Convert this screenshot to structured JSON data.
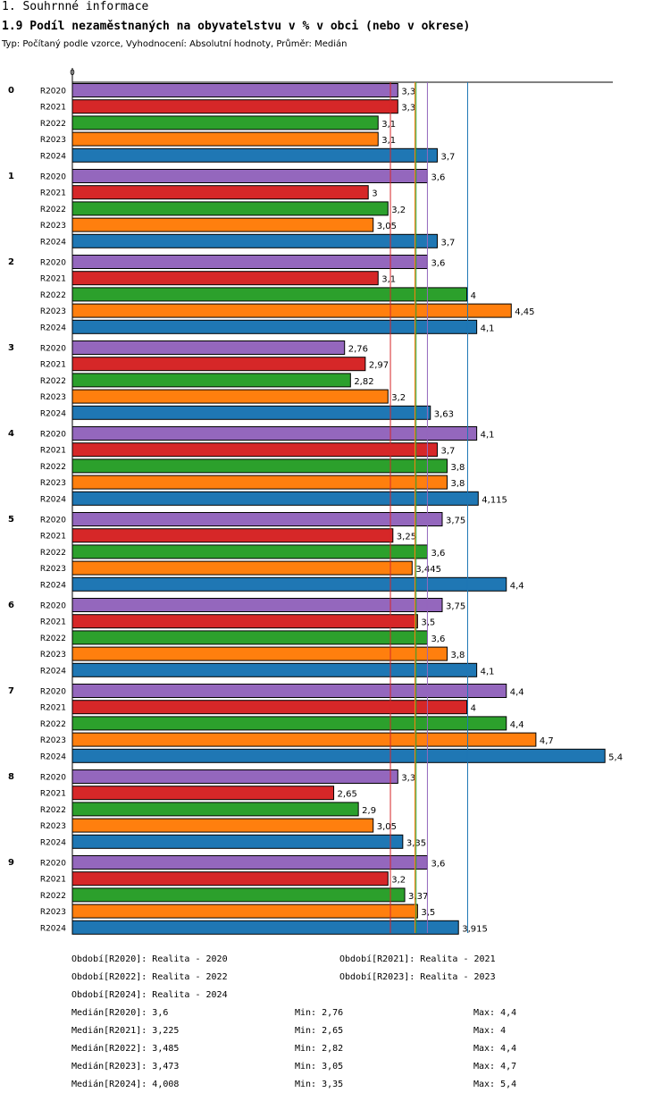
{
  "header": {
    "section": "1. Souhrnné informace",
    "title": "1.9 Podíl nezaměstnaných na obyvatelstvu v % v obci (nebo v okrese)",
    "subtitle": "Typ: Počítaný podle vzorce, Vyhodnocení: Absolutní hodnoty, Průměr: Medián"
  },
  "chart_data": {
    "type": "bar",
    "orientation": "horizontal",
    "x_axis_start_label": "0",
    "xlim": [
      0,
      5.55
    ],
    "categories": [
      "0",
      "1",
      "2",
      "3",
      "4",
      "5",
      "6",
      "7",
      "8",
      "9"
    ],
    "series": [
      {
        "name": "R2020",
        "color": "#9467bd",
        "values": [
          3.3,
          3.6,
          3.6,
          2.76,
          4.1,
          3.75,
          3.75,
          4.4,
          3.3,
          3.6
        ],
        "labels": [
          "3,3",
          "3,6",
          "3,6",
          "2,76",
          "4,1",
          "3,75",
          "3,75",
          "4,4",
          "3,3",
          "3,6"
        ]
      },
      {
        "name": "R2021",
        "color": "#d62728",
        "values": [
          3.3,
          3,
          3.1,
          2.97,
          3.7,
          3.25,
          3.5,
          4,
          2.65,
          3.2
        ],
        "labels": [
          "3,3",
          "3",
          "3,1",
          "2,97",
          "3,7",
          "3,25",
          "3,5",
          "4",
          "2,65",
          "3,2"
        ]
      },
      {
        "name": "R2022",
        "color": "#2ca02c",
        "values": [
          3.1,
          3.2,
          4,
          2.82,
          3.8,
          3.6,
          3.6,
          4.4,
          2.9,
          3.37
        ],
        "labels": [
          "3,1",
          "3,2",
          "4",
          "2,82",
          "3,8",
          "3,6",
          "3,6",
          "4,4",
          "2,9",
          "3,37"
        ]
      },
      {
        "name": "R2023",
        "color": "#ff7f0e",
        "values": [
          3.1,
          3.05,
          4.45,
          3.2,
          3.8,
          3.445,
          3.8,
          4.7,
          3.05,
          3.5
        ],
        "labels": [
          "3,1",
          "3,05",
          "4,45",
          "3,2",
          "3,8",
          "3,445",
          "3,8",
          "4,7",
          "3,05",
          "3,5"
        ]
      },
      {
        "name": "R2024",
        "color": "#1f77b4",
        "values": [
          3.7,
          3.7,
          4.1,
          3.63,
          4.115,
          4.4,
          4.1,
          5.4,
          3.35,
          3.915
        ],
        "labels": [
          "3,7",
          "3,7",
          "4,1",
          "3,63",
          "4,115",
          "4,4",
          "4,1",
          "5,4",
          "3,35",
          "3,915"
        ]
      }
    ],
    "reference_lines": [
      {
        "series": "R2021",
        "stat": "median",
        "value": 3.225,
        "color": "#d62728"
      },
      {
        "series": "R2023",
        "stat": "median",
        "value": 3.473,
        "color": "#ff7f0e"
      },
      {
        "series": "R2022",
        "stat": "median",
        "value": 3.485,
        "color": "#2ca02c"
      },
      {
        "series": "R2020",
        "stat": "median",
        "value": 3.6,
        "color": "#9467bd"
      },
      {
        "series": "R2024",
        "stat": "median",
        "value": 4.008,
        "color": "#1f77b4"
      }
    ]
  },
  "legend": {
    "periods": [
      "Období[R2020]: Realita - 2020",
      "Období[R2021]: Realita - 2021",
      "Období[R2022]: Realita - 2022",
      "Období[R2023]: Realita - 2023",
      "Období[R2024]: Realita - 2024"
    ],
    "stats": [
      {
        "median": "Medián[R2020]: 3,6",
        "min": "Min: 2,76",
        "max": "Max: 4,4"
      },
      {
        "median": "Medián[R2021]: 3,225",
        "min": "Min: 2,65",
        "max": "Max: 4"
      },
      {
        "median": "Medián[R2022]: 3,485",
        "min": "Min: 2,82",
        "max": "Max: 4,4"
      },
      {
        "median": "Medián[R2023]: 3,473",
        "min": "Min: 3,05",
        "max": "Max: 4,7"
      },
      {
        "median": "Medián[R2024]: 4,008",
        "min": "Min: 3,35",
        "max": "Max: 5,4"
      }
    ]
  }
}
